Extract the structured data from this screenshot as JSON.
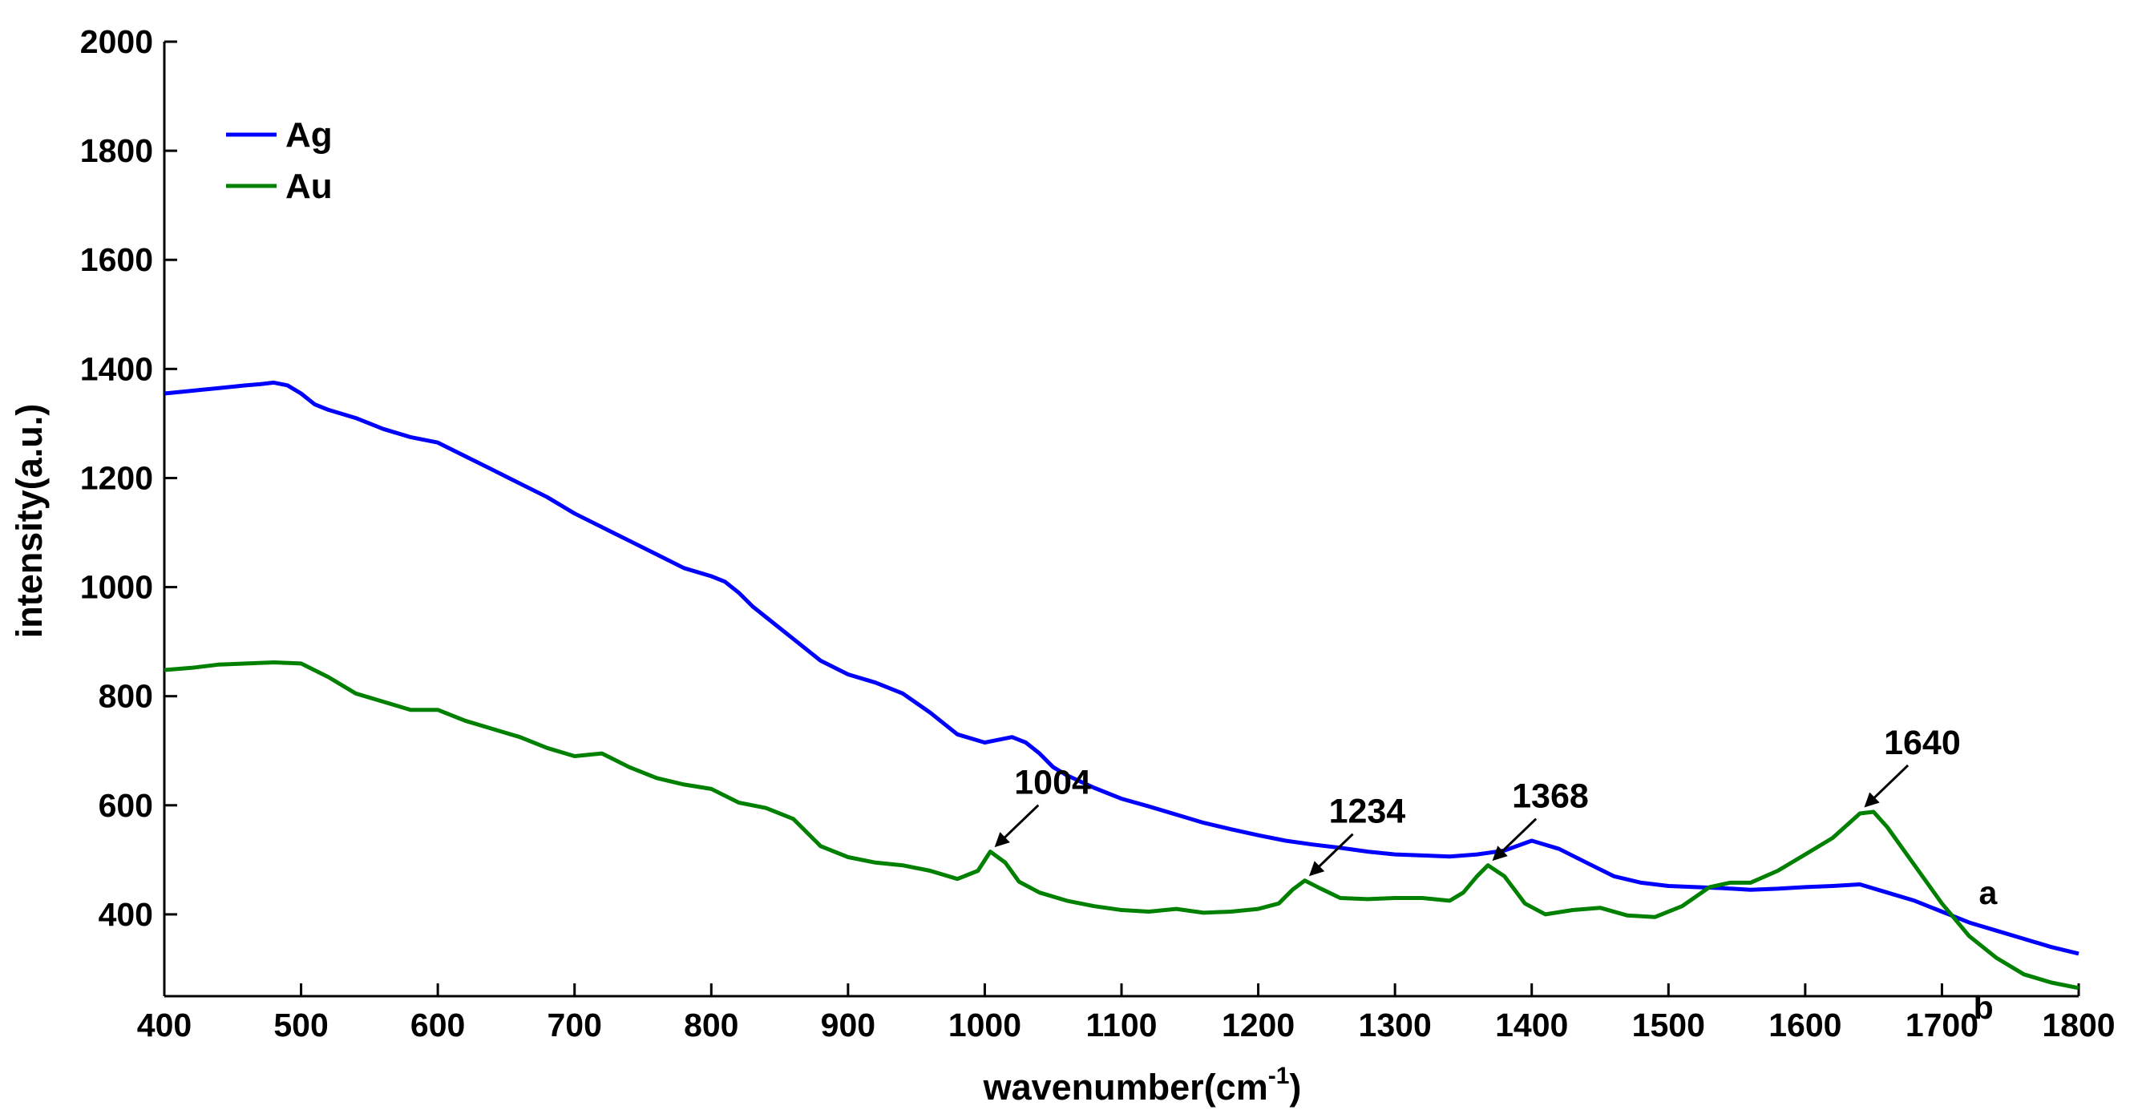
{
  "chart_data": {
    "type": "line",
    "xlabel_main": "wavenumber(cm",
    "xlabel_sup": "-1",
    "xlabel_close": ")",
    "ylabel": "intensity(a.u.)",
    "xlim": [
      400,
      1800
    ],
    "ylim": [
      250,
      2000
    ],
    "xticks": [
      400,
      500,
      600,
      700,
      800,
      900,
      1000,
      1100,
      1200,
      1300,
      1400,
      1500,
      1600,
      1700,
      1800
    ],
    "yticks": [
      400,
      600,
      800,
      1000,
      1200,
      1400,
      1600,
      1800,
      2000
    ],
    "grid": false,
    "legend_position": "top-left",
    "series": [
      {
        "name": "Ag",
        "color": "#0000ff",
        "curve_label": "a",
        "x": [
          400,
          420,
          440,
          460,
          470,
          480,
          490,
          500,
          510,
          520,
          540,
          560,
          580,
          600,
          620,
          640,
          660,
          680,
          700,
          720,
          740,
          760,
          780,
          800,
          810,
          820,
          830,
          840,
          860,
          880,
          900,
          920,
          940,
          960,
          980,
          1000,
          1010,
          1020,
          1030,
          1040,
          1050,
          1060,
          1080,
          1100,
          1120,
          1140,
          1160,
          1180,
          1200,
          1220,
          1240,
          1260,
          1280,
          1300,
          1320,
          1340,
          1360,
          1380,
          1400,
          1420,
          1440,
          1460,
          1480,
          1500,
          1520,
          1540,
          1560,
          1580,
          1600,
          1620,
          1640,
          1660,
          1680,
          1700,
          1720,
          1740,
          1760,
          1780,
          1800
        ],
        "y": [
          1355,
          1360,
          1365,
          1370,
          1372,
          1375,
          1370,
          1355,
          1335,
          1325,
          1310,
          1290,
          1275,
          1265,
          1240,
          1215,
          1190,
          1165,
          1135,
          1110,
          1085,
          1060,
          1035,
          1020,
          1010,
          990,
          965,
          945,
          905,
          865,
          840,
          825,
          805,
          770,
          730,
          715,
          720,
          725,
          715,
          695,
          670,
          655,
          632,
          612,
          598,
          583,
          568,
          556,
          545,
          535,
          528,
          522,
          515,
          510,
          508,
          506,
          510,
          517,
          535,
          520,
          495,
          470,
          458,
          452,
          450,
          448,
          445,
          447,
          450,
          452,
          455,
          440,
          425,
          405,
          385,
          370,
          355,
          340,
          328
        ]
      },
      {
        "name": "Au",
        "color": "#008000",
        "curve_label": "b",
        "x": [
          400,
          420,
          440,
          460,
          480,
          500,
          520,
          540,
          560,
          580,
          600,
          620,
          640,
          660,
          680,
          700,
          720,
          740,
          760,
          780,
          800,
          820,
          840,
          860,
          880,
          900,
          920,
          940,
          960,
          980,
          995,
          1004,
          1015,
          1025,
          1040,
          1060,
          1080,
          1100,
          1120,
          1140,
          1160,
          1180,
          1200,
          1215,
          1225,
          1234,
          1245,
          1260,
          1280,
          1300,
          1320,
          1340,
          1350,
          1360,
          1368,
          1380,
          1395,
          1410,
          1430,
          1450,
          1470,
          1490,
          1510,
          1530,
          1545,
          1560,
          1580,
          1600,
          1620,
          1640,
          1650,
          1660,
          1680,
          1700,
          1720,
          1740,
          1760,
          1780,
          1800
        ],
        "y": [
          848,
          852,
          858,
          860,
          862,
          860,
          835,
          805,
          790,
          775,
          775,
          755,
          740,
          725,
          705,
          690,
          695,
          670,
          650,
          638,
          630,
          605,
          595,
          575,
          525,
          505,
          495,
          490,
          480,
          465,
          480,
          515,
          495,
          460,
          440,
          425,
          415,
          408,
          405,
          410,
          403,
          405,
          410,
          420,
          445,
          462,
          448,
          430,
          428,
          430,
          430,
          425,
          440,
          470,
          490,
          470,
          420,
          400,
          408,
          412,
          398,
          395,
          415,
          450,
          458,
          458,
          480,
          510,
          540,
          585,
          588,
          560,
          490,
          420,
          360,
          320,
          290,
          275,
          265
        ]
      }
    ],
    "annotations": [
      {
        "text": "1004",
        "x": 1004,
        "y": 515
      },
      {
        "text": "1234",
        "x": 1234,
        "y": 462
      },
      {
        "text": "1368",
        "x": 1368,
        "y": 490
      },
      {
        "text": "1640",
        "x": 1640,
        "y": 588
      }
    ]
  }
}
